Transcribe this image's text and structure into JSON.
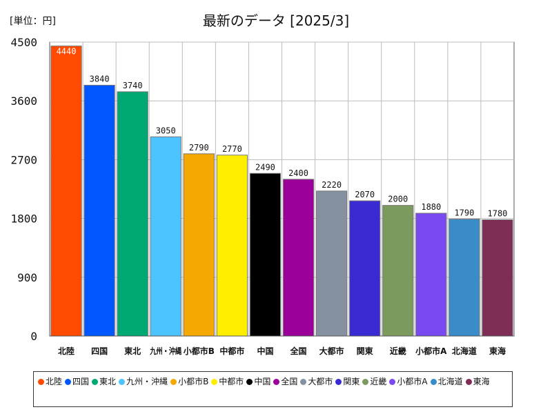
{
  "unit_label": "[単位：円]",
  "chart_data": {
    "type": "bar",
    "title": "最新のデータ [2025/3]",
    "xlabel": "",
    "ylabel": "",
    "ylim": [
      0,
      4500
    ],
    "yticks": [
      0,
      900,
      1800,
      2700,
      3600,
      4500
    ],
    "grid": true,
    "legend_position": "bottom",
    "categories": [
      "北陸",
      "四国",
      "東北",
      "九州・沖縄",
      "小都市B",
      "中都市",
      "中国",
      "全国",
      "大都市",
      "関東",
      "近畿",
      "小都市A",
      "北海道",
      "東海"
    ],
    "values": [
      4440,
      3840,
      3740,
      3050,
      2790,
      2770,
      2490,
      2400,
      2220,
      2070,
      2000,
      1880,
      1790,
      1780
    ],
    "colors": [
      "#ff4a00",
      "#0057ff",
      "#00a873",
      "#4dc4ff",
      "#f5a800",
      "#ffee00",
      "#000000",
      "#9b009b",
      "#8591a0",
      "#3a2ad1",
      "#7a9a5e",
      "#7a4af0",
      "#3a8cc8",
      "#7e2d55"
    ]
  }
}
